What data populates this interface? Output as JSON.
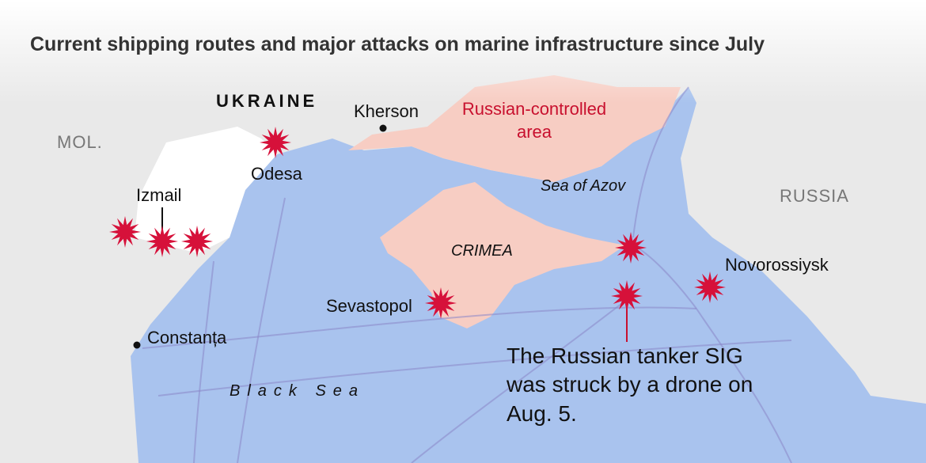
{
  "title": "Current shipping routes and major attacks on marine infrastructure since July",
  "labels": {
    "ukraine": "UKRAINE",
    "kherson": "Kherson",
    "russian_area": "Russian-controlled area",
    "moldova": "MOL.",
    "odesa": "Odesa",
    "izmail": "Izmail",
    "azov": "Sea of Azov",
    "russia": "RUSSIA",
    "crimea": "CRIMEA",
    "sevastopol": "Sevastopol",
    "novorossiysk": "Novorossiysk",
    "constanta": "Constanța",
    "black_sea": "Black Sea"
  },
  "annotation": "The Russian tanker SIG was struck by a drone on Aug. 5."
}
